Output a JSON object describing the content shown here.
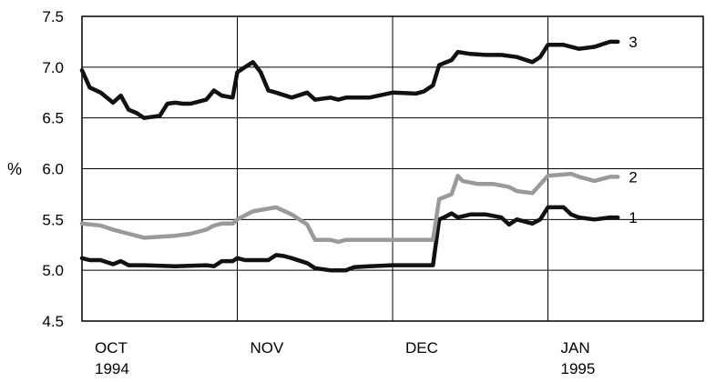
{
  "chart_data": {
    "type": "line",
    "title": "",
    "xlabel": "",
    "ylabel": "%",
    "ylim": [
      4.5,
      7.5
    ],
    "yticks": [
      "4.5",
      "5.0",
      "5.5",
      "6.0",
      "6.5",
      "7.0",
      "7.5"
    ],
    "xticks": [
      {
        "label": "OCT",
        "year": "1994"
      },
      {
        "label": "NOV",
        "year": ""
      },
      {
        "label": "DEC",
        "year": ""
      },
      {
        "label": "JAN",
        "year": "1995"
      }
    ],
    "xlim": [
      0,
      4
    ],
    "grid": true,
    "series": [
      {
        "name": "1",
        "color": "#111111",
        "x": [
          0.0,
          0.05,
          0.12,
          0.2,
          0.25,
          0.3,
          0.35,
          0.4,
          0.6,
          0.8,
          0.85,
          0.9,
          0.97,
          1.0,
          1.05,
          1.1,
          1.2,
          1.25,
          1.3,
          1.35,
          1.45,
          1.5,
          1.6,
          1.7,
          1.75,
          1.85,
          2.0,
          2.2,
          2.26,
          2.3,
          2.33,
          2.38,
          2.42,
          2.5,
          2.6,
          2.7,
          2.75,
          2.8,
          2.9,
          2.95,
          3.0,
          3.1,
          3.15,
          3.2,
          3.3,
          3.4,
          3.45
        ],
        "y": [
          5.12,
          5.1,
          5.1,
          5.06,
          5.09,
          5.05,
          5.05,
          5.05,
          5.04,
          5.05,
          5.04,
          5.09,
          5.09,
          5.12,
          5.1,
          5.1,
          5.1,
          5.15,
          5.14,
          5.12,
          5.07,
          5.02,
          5.0,
          5.0,
          5.03,
          5.04,
          5.05,
          5.05,
          5.05,
          5.5,
          5.52,
          5.56,
          5.52,
          5.55,
          5.55,
          5.52,
          5.45,
          5.5,
          5.46,
          5.5,
          5.62,
          5.62,
          5.55,
          5.52,
          5.5,
          5.52,
          5.52
        ]
      },
      {
        "name": "2",
        "color": "#9a9a9a",
        "x": [
          0.0,
          0.12,
          0.2,
          0.3,
          0.35,
          0.4,
          0.6,
          0.7,
          0.8,
          0.85,
          0.9,
          0.97,
          1.0,
          1.1,
          1.25,
          1.35,
          1.45,
          1.5,
          1.6,
          1.65,
          1.7,
          1.85,
          2.0,
          2.2,
          2.26,
          2.3,
          2.38,
          2.42,
          2.45,
          2.55,
          2.65,
          2.75,
          2.8,
          2.9,
          3.0,
          3.15,
          3.2,
          3.3,
          3.4,
          3.45
        ],
        "y": [
          5.46,
          5.44,
          5.4,
          5.36,
          5.34,
          5.32,
          5.34,
          5.36,
          5.4,
          5.44,
          5.46,
          5.46,
          5.5,
          5.58,
          5.62,
          5.55,
          5.45,
          5.3,
          5.3,
          5.28,
          5.3,
          5.3,
          5.3,
          5.3,
          5.3,
          5.7,
          5.75,
          5.93,
          5.88,
          5.85,
          5.85,
          5.82,
          5.78,
          5.76,
          5.93,
          5.95,
          5.92,
          5.88,
          5.92,
          5.92
        ]
      },
      {
        "name": "3",
        "color": "#111111",
        "x": [
          0.0,
          0.05,
          0.12,
          0.2,
          0.25,
          0.3,
          0.35,
          0.4,
          0.5,
          0.55,
          0.6,
          0.65,
          0.7,
          0.8,
          0.85,
          0.9,
          0.97,
          1.0,
          1.05,
          1.1,
          1.15,
          1.2,
          1.25,
          1.35,
          1.45,
          1.5,
          1.6,
          1.65,
          1.7,
          1.85,
          2.0,
          2.15,
          2.2,
          2.26,
          2.3,
          2.38,
          2.42,
          2.5,
          2.6,
          2.7,
          2.8,
          2.9,
          2.95,
          3.0,
          3.1,
          3.2,
          3.3,
          3.4,
          3.45
        ],
        "y": [
          6.97,
          6.8,
          6.75,
          6.65,
          6.72,
          6.58,
          6.55,
          6.5,
          6.52,
          6.64,
          6.65,
          6.64,
          6.64,
          6.68,
          6.77,
          6.72,
          6.7,
          6.95,
          7.0,
          7.05,
          6.95,
          6.77,
          6.75,
          6.7,
          6.75,
          6.68,
          6.7,
          6.68,
          6.7,
          6.7,
          6.75,
          6.74,
          6.76,
          6.82,
          7.02,
          7.07,
          7.15,
          7.13,
          7.12,
          7.12,
          7.1,
          7.05,
          7.1,
          7.22,
          7.22,
          7.18,
          7.2,
          7.25,
          7.25
        ]
      }
    ]
  }
}
